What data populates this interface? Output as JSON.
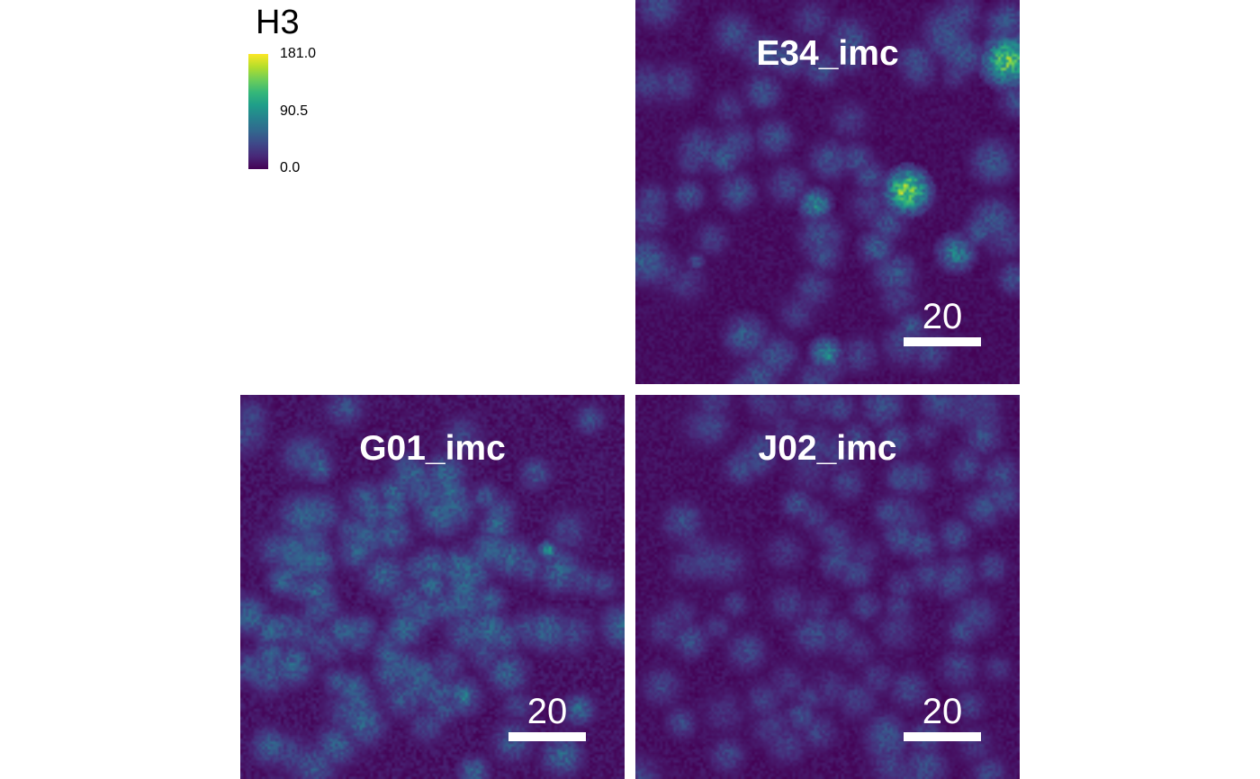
{
  "legend": {
    "title": "H3",
    "max_label": "181.0",
    "mid_label": "90.5",
    "min_label": "0.0",
    "colormap": [
      "#440154",
      "#482878",
      "#3e4989",
      "#31688e",
      "#26828e",
      "#1f9e89",
      "#35b779",
      "#6ece58",
      "#b5de2b",
      "#fde725"
    ]
  },
  "panels": [
    {
      "id": "E34",
      "title": "E34_imc",
      "scale_label": "20"
    },
    {
      "id": "G01",
      "title": "G01_imc",
      "scale_label": "20"
    },
    {
      "id": "J02",
      "title": "J02_imc",
      "scale_label": "20"
    }
  ]
}
